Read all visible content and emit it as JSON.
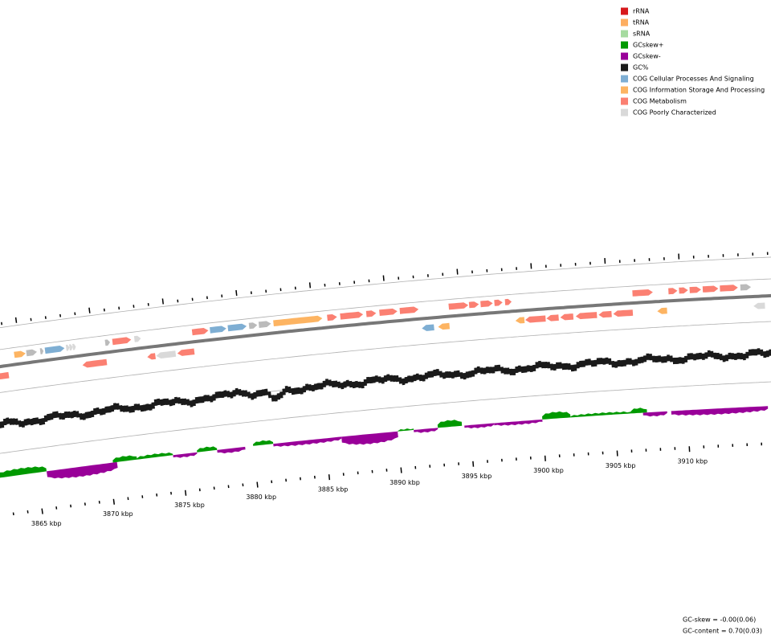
{
  "legend": [
    {
      "label": "rRNA",
      "color": "#d7191c"
    },
    {
      "label": "tRNA",
      "color": "#fdae61"
    },
    {
      "label": "sRNA",
      "color": "#a6dba0"
    },
    {
      "label": "GCskew+",
      "color": "#009900"
    },
    {
      "label": "GCskew-",
      "color": "#990099"
    },
    {
      "label": "GC%",
      "color": "#1a1a1a"
    },
    {
      "label": "COG Cellular Processes And Signaling",
      "color": "#7eaed3"
    },
    {
      "label": "COG Information Storage And Processing",
      "color": "#fdb462"
    },
    {
      "label": "COG Metabolism",
      "color": "#fb8072"
    },
    {
      "label": "COG Poorly Characterized",
      "color": "#d9d9d9"
    }
  ],
  "scale": [
    {
      "value": 3865,
      "label": "3865 kbp"
    },
    {
      "value": 3870,
      "label": "3870 kbp"
    },
    {
      "value": 3875,
      "label": "3875 kbp"
    },
    {
      "value": 3880,
      "label": "3880 kbp"
    },
    {
      "value": 3885,
      "label": "3885 kbp"
    },
    {
      "value": 3890,
      "label": "3890 kbp"
    },
    {
      "value": 3895,
      "label": "3895 kbp"
    },
    {
      "value": 3900,
      "label": "3900 kbp"
    },
    {
      "value": 3905,
      "label": "3905 kbp"
    },
    {
      "value": 3910,
      "label": "3910 kbp"
    }
  ],
  "stats": [
    "GC-skew = -0.00(0.06)",
    "GC-content = 0.70(0.03)"
  ]
}
